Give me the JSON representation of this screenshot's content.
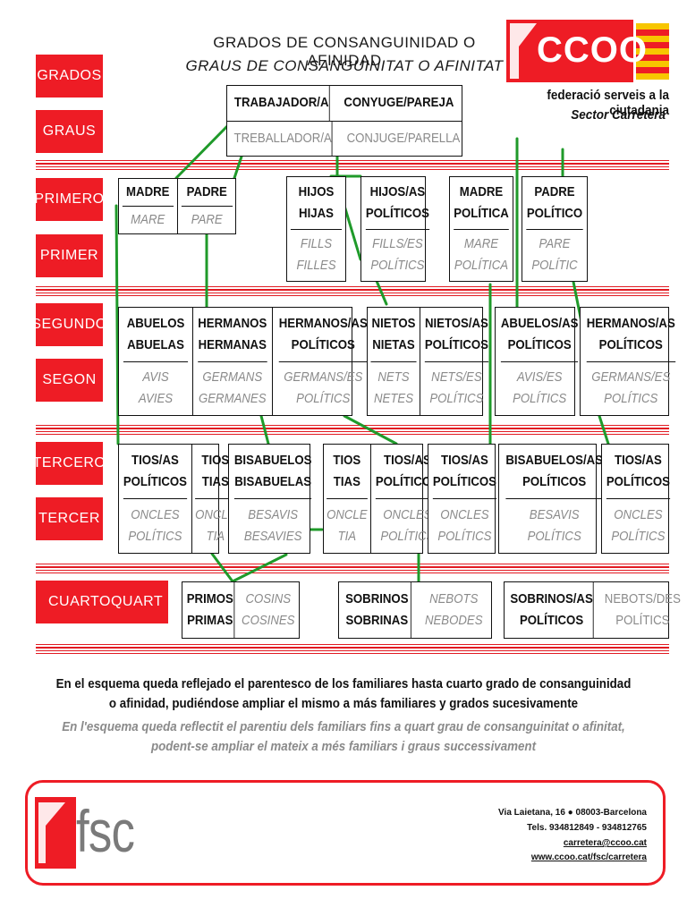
{
  "header": {
    "title_es": "GRADOS DE CONSANGUINIDAD O AFINIDAD",
    "title_ca": "GRAUS DE CONSANGUINITAT O AFINITAT",
    "logo_text": "CCOO",
    "federation": "federació serveis a la ciutadania",
    "sector": "Sector Carretera"
  },
  "labels": {
    "grados": "GRADOS",
    "graus": "GRAUS",
    "primero": "PRIMERO",
    "primer": "PRIMER",
    "segundo": "SEGUNDO",
    "segon": "SEGON",
    "tercero": "TERCERO",
    "tercer": "TERCER",
    "cuarto": "CUARTO",
    "quart": "QUART"
  },
  "root": {
    "es": [
      "TRABAJADOR/A",
      "CONYUGE/PAREJA"
    ],
    "ca": [
      "TREBALLADOR/A",
      "CONJUGE/PARELLA"
    ]
  },
  "primero": [
    {
      "es": "MADRE",
      "ca": "MARE"
    },
    {
      "es": "PADRE",
      "ca": "PARE"
    },
    {
      "es": "HIJOS\nHIJAS",
      "ca": "FILLS\nFILLES"
    },
    {
      "es": "HIJOS/AS\nPOLÍTICOS",
      "ca": "FILLS/ES\nPOLÍTICS"
    },
    {
      "es": "MADRE\nPOLÍTICA",
      "ca": "MARE\nPOLÍTICA"
    },
    {
      "es": "PADRE\nPOLÍTICO",
      "ca": "PARE\nPOLÍTIC"
    }
  ],
  "segundo": [
    {
      "es": "ABUELOS\nABUELAS",
      "ca": "AVIS\nAVIES"
    },
    {
      "es": "HERMANOS\nHERMANAS",
      "ca": "GERMANS\nGERMANES"
    },
    {
      "es": "HERMANOS/AS\nPOLÍTICOS",
      "ca": "GERMANS/ES\nPOLÍTICS"
    },
    {
      "es": "NIETOS\nNIETAS",
      "ca": "NETS\nNETES"
    },
    {
      "es": "NIETOS/AS\nPOLÍTICOS",
      "ca": "NETS/ES\nPOLÍTICS"
    },
    {
      "es": "ABUELOS/AS\nPOLÍTICOS",
      "ca": "AVIS/ES\nPOLÍTICS"
    },
    {
      "es": "HERMANOS/AS\nPOLÍTICOS",
      "ca": "GERMANS/ES\nPOLÍTICS"
    }
  ],
  "tercero": [
    {
      "es": "TIOS/AS\nPOLÍTICOS",
      "ca": "ONCLES\nPOLÍTICS"
    },
    {
      "es": "TIOS\nTIAS",
      "ca": "ONCLE\nTIA"
    },
    {
      "es": "BISABUELOS\nBISABUELAS",
      "ca": "BESAVIS\nBESAVIES"
    },
    {
      "es": "TIOS\nTIAS",
      "ca": "ONCLE\nTIA"
    },
    {
      "es": "TIOS/AS\nPOLÍTICOS",
      "ca": "ONCLES\nPOLÍTICS"
    },
    {
      "es": "TIOS/AS\nPOLÍTICOS",
      "ca": "ONCLES\nPOLÍTICS"
    },
    {
      "es": "BISABUELOS/AS\nPOLÍTICOS",
      "ca": "BESAVIS\nPOLÍTICS"
    },
    {
      "es": "TIOS/AS\nPOLÍTICOS",
      "ca": "ONCLES\nPOLÍTICS"
    }
  ],
  "cuarto": [
    {
      "es": "PRIMOS\nPRIMAS",
      "ca": "COSINS\nCOSINES"
    },
    {
      "es": "SOBRINOS\nSOBRINAS",
      "ca": "NEBOTS\nNEBODES"
    },
    {
      "es": "SOBRINOS/AS\nPOLÍTICOS",
      "ca": "NEBOTS/DES\nPOLÍTICS"
    }
  ],
  "notes": {
    "es": "En el esquema queda reflejado el parentesco de los familiares hasta cuarto grado de consanguinidad o afinidad, pudiéndose ampliar el mismo a más familiares y grados sucesivamente",
    "ca": "En l'esquema queda reflectit el parentiu dels familiars fins a quart grau de consanguinitat o afinitat, podent-se ampliar el mateix a més familiars i graus successivament"
  },
  "footer": {
    "logo_text": "fsc",
    "address": "Via  Laietana, 16  ● 08003-Barcelona",
    "phone": "Tels. 934812849 - 934812765",
    "email": "carretera@ccoo.cat",
    "web": "www.ccoo.cat/fsc/carretera"
  },
  "colors": {
    "brand_red": "#ee1c25",
    "line_green": "#1f9a2a",
    "catalan_text": "#8a8a8a",
    "flag_yellow": "#f7c600"
  }
}
